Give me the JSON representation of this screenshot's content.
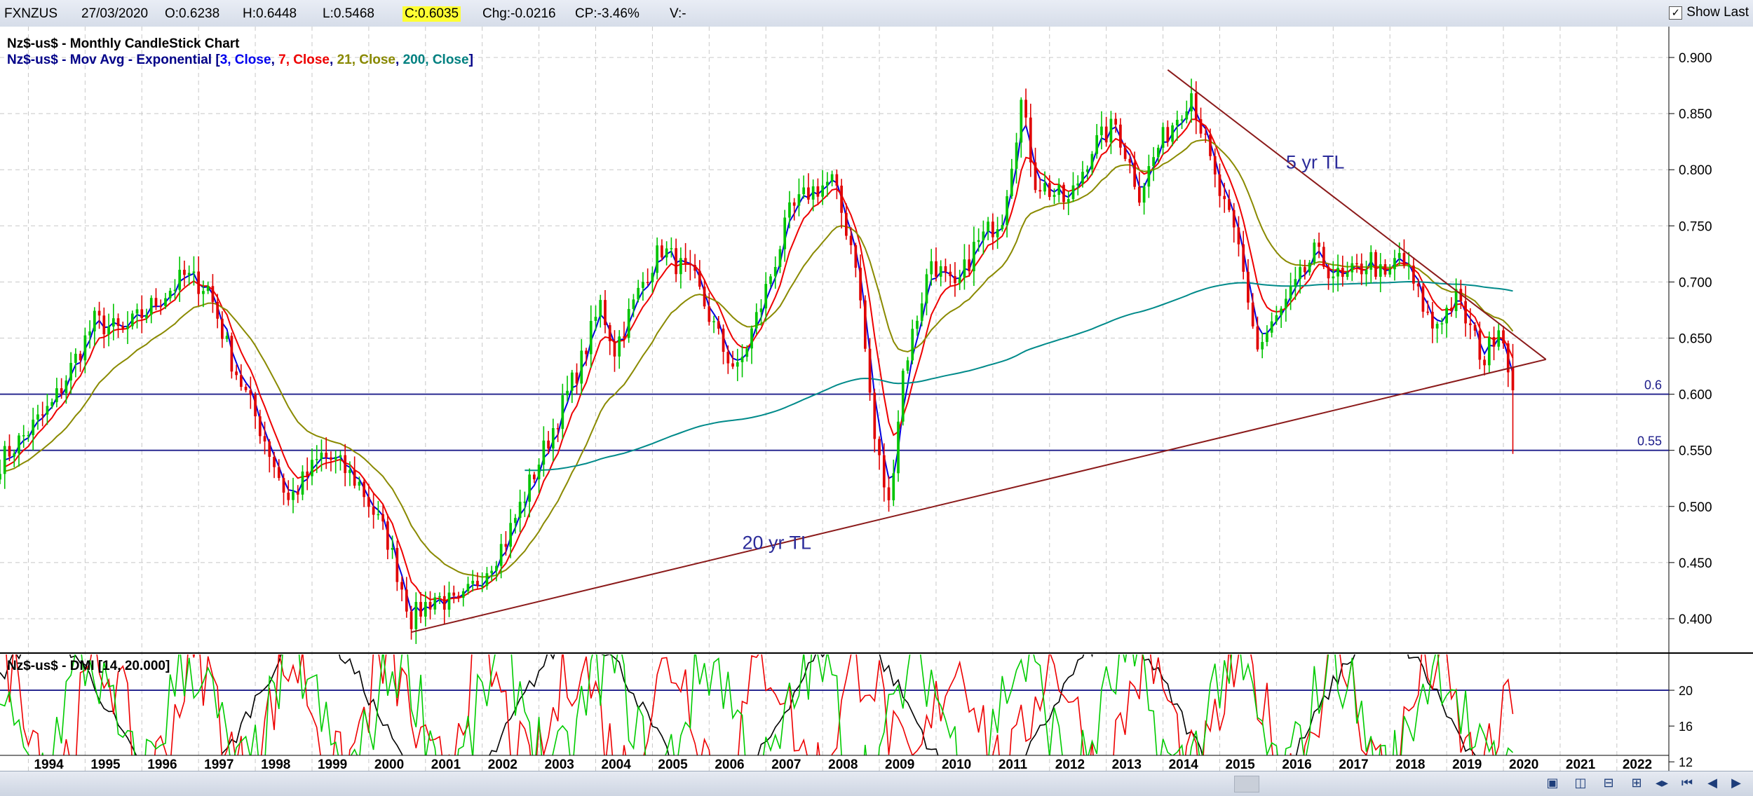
{
  "header": {
    "symbol": "FXNZUS",
    "date": "27/03/2020",
    "open": "O:0.6238",
    "high": "H:0.6448",
    "low": "L:0.5468",
    "close": "C:0.6035",
    "change": "Chg:-0.0216",
    "change_pct": "CP:-3.46%",
    "volume": "V:-",
    "show_last_label": "Show Last",
    "show_last_checked": true
  },
  "legend": {
    "line1": "Nz$-us$ - Monthly CandleStick Chart",
    "line2_prefix": "Nz$-us$ - Mov Avg - Exponential [",
    "ma_params": [
      {
        "text": "3, Close",
        "color": "#0000ee"
      },
      {
        "text": "7, Close",
        "color": "#ee0000"
      },
      {
        "text": "21, Close",
        "color": "#888800"
      },
      {
        "text": "200, Close",
        "color": "#008080"
      }
    ],
    "line2_suffix": "]",
    "indicator": "Nz$-us$ - DMI [14, 20.000]"
  },
  "colors": {
    "bull": "#00c400",
    "bear": "#e00000",
    "ema3": "#0000dd",
    "ema7": "#ee0000",
    "ema21": "#8a8a00",
    "ema200": "#008a8a",
    "trendline": "#8b1a1a",
    "hline": "#1c1c8a",
    "adx": "#000000",
    "plus_di": "#ee0000",
    "minus_di": "#00cc00",
    "grid": "#c8c8c8"
  },
  "chart_data": [
    {
      "type": "candlestick",
      "title": "Nz$-us$ - Monthly CandleStick Chart",
      "ylim": [
        0.37,
        0.915
      ],
      "y_ticks": [
        "0.400",
        "0.450",
        "0.500",
        "0.550",
        "0.600",
        "0.650",
        "0.700",
        "0.750",
        "0.800",
        "0.850",
        "0.900"
      ],
      "x_ticks": [
        "1994",
        "1995",
        "1996",
        "1997",
        "1998",
        "1999",
        "2000",
        "2001",
        "2002",
        "2003",
        "2004",
        "2005",
        "2006",
        "2007",
        "2008",
        "2009",
        "2010",
        "2011",
        "2012",
        "2013",
        "2014",
        "2015",
        "2016",
        "2017",
        "2018",
        "2019",
        "2020",
        "2021",
        "2022"
      ],
      "xlim": [
        "1993-07",
        "2022-12"
      ],
      "grid": true,
      "price_path": [
        [
          "1993-07",
          0.54
        ],
        [
          "1994-06",
          0.59
        ],
        [
          "1995-03",
          0.665
        ],
        [
          "1995-09",
          0.655
        ],
        [
          "1996-06",
          0.69
        ],
        [
          "1996-10",
          0.705
        ],
        [
          "1997-03",
          0.695
        ],
        [
          "1997-08",
          0.63
        ],
        [
          "1998-03",
          0.56
        ],
        [
          "1998-08",
          0.505
        ],
        [
          "1999-03",
          0.545
        ],
        [
          "1999-06",
          0.54
        ],
        [
          "1999-11",
          0.52
        ],
        [
          "2000-05",
          0.47
        ],
        [
          "2000-10",
          0.4
        ],
        [
          "2001-03",
          0.42
        ],
        [
          "2001-08",
          0.41
        ],
        [
          "2002-06",
          0.47
        ],
        [
          "2003-03",
          0.56
        ],
        [
          "2003-10",
          0.63
        ],
        [
          "2004-02",
          0.68
        ],
        [
          "2004-05",
          0.64
        ],
        [
          "2004-12",
          0.71
        ],
        [
          "2005-03",
          0.73
        ],
        [
          "2005-10",
          0.7
        ],
        [
          "2006-04",
          0.64
        ],
        [
          "2006-07",
          0.62
        ],
        [
          "2006-12",
          0.68
        ],
        [
          "2007-06",
          0.76
        ],
        [
          "2007-10",
          0.78
        ],
        [
          "2008-03",
          0.79
        ],
        [
          "2008-08",
          0.72
        ],
        [
          "2008-12",
          0.56
        ],
        [
          "2009-03",
          0.5
        ],
        [
          "2009-06",
          0.62
        ],
        [
          "2009-12",
          0.72
        ],
        [
          "2010-05",
          0.69
        ],
        [
          "2010-09",
          0.73
        ],
        [
          "2011-03",
          0.76
        ],
        [
          "2011-07",
          0.86
        ],
        [
          "2011-10",
          0.79
        ],
        [
          "2012-05",
          0.77
        ],
        [
          "2012-10",
          0.82
        ],
        [
          "2013-03",
          0.84
        ],
        [
          "2013-08",
          0.78
        ],
        [
          "2013-12",
          0.82
        ],
        [
          "2014-07",
          0.87
        ],
        [
          "2014-12",
          0.79
        ],
        [
          "2015-05",
          0.73
        ],
        [
          "2015-09",
          0.64
        ],
        [
          "2016-03",
          0.68
        ],
        [
          "2016-09",
          0.725
        ],
        [
          "2017-03",
          0.7
        ],
        [
          "2017-09",
          0.72
        ],
        [
          "2017-12",
          0.7
        ],
        [
          "2018-03",
          0.725
        ],
        [
          "2018-10",
          0.66
        ],
        [
          "2019-03",
          0.685
        ],
        [
          "2019-09",
          0.63
        ],
        [
          "2019-12",
          0.665
        ],
        [
          "2020-02",
          0.63
        ],
        [
          "2020-03",
          0.6035
        ]
      ],
      "last_candle": {
        "date": "2020-03",
        "open": 0.6238,
        "high": 0.6448,
        "low": 0.5468,
        "close": 0.6035
      },
      "moving_averages": [
        {
          "name": "EMA 3",
          "period": 3,
          "source": "Close"
        },
        {
          "name": "EMA 7",
          "period": 7,
          "source": "Close"
        },
        {
          "name": "EMA 21",
          "period": 21,
          "source": "Close"
        },
        {
          "name": "EMA 200",
          "period": 200,
          "source": "Close"
        }
      ],
      "horizontal_lines": [
        {
          "label": "0.6",
          "value": 0.6
        },
        {
          "label": "0.55",
          "value": 0.55
        }
      ],
      "trendlines": [
        {
          "label": "20 yr TL",
          "from": [
            "2000-10",
            0.388
          ],
          "to": [
            "2020-10",
            0.631
          ]
        },
        {
          "label": "5 yr TL",
          "from": [
            "2014-02",
            0.889
          ],
          "to": [
            "2020-10",
            0.631
          ]
        }
      ],
      "annotations": [
        {
          "text": "5 yr TL",
          "date": "2016-03",
          "value": 0.801
        },
        {
          "text": "20 yr TL",
          "date": "2006-08",
          "value": 0.462
        }
      ]
    },
    {
      "type": "line",
      "title": "Nz$-us$ - DMI [14, 20.000]",
      "ylim": [
        11,
        24
      ],
      "y_ticks": [
        "12",
        "16",
        "20"
      ],
      "horizontal_lines": [
        {
          "value": 20
        }
      ],
      "series": [
        {
          "name": "ADX"
        },
        {
          "name": "+DI"
        },
        {
          "name": "-DI"
        }
      ]
    }
  ]
}
